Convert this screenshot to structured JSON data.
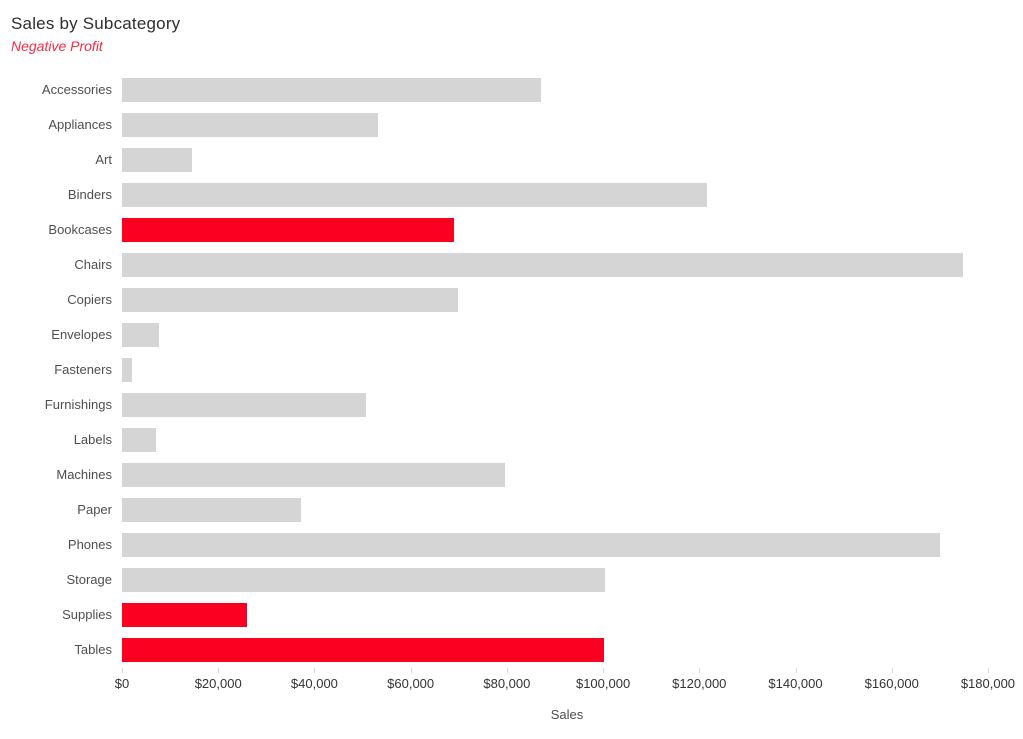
{
  "title": "Sales by Subcategory",
  "subtitle": "Negative Profit",
  "colors": {
    "bar_default": "#d5d5d5",
    "bar_negative": "#fc0021",
    "subtitle_text": "#fa2b44",
    "title_text": "#2e2e2e",
    "category_label_text": "#4e4e4e",
    "tick_label_text": "#333333",
    "tick_mark": "#d8d8d8"
  },
  "chart_data": {
    "type": "bar",
    "orientation": "horizontal",
    "title": "Sales by Subcategory",
    "subtitle": "Negative Profit",
    "xlabel": "Sales",
    "ylabel": "",
    "grid": false,
    "legend": false,
    "xlim": [
      0,
      185000
    ],
    "x_tick_values": [
      0,
      20000,
      40000,
      60000,
      80000,
      100000,
      120000,
      140000,
      160000,
      180000
    ],
    "x_tick_labels": [
      "$0",
      "$20,000",
      "$40,000",
      "$60,000",
      "$80,000",
      "$100,000",
      "$120,000",
      "$140,000",
      "$160,000",
      "$180,000"
    ],
    "categories": [
      "Accessories",
      "Appliances",
      "Art",
      "Binders",
      "Bookcases",
      "Chairs",
      "Copiers",
      "Envelopes",
      "Fasteners",
      "Furnishings",
      "Labels",
      "Machines",
      "Paper",
      "Phones",
      "Storage",
      "Supplies",
      "Tables"
    ],
    "values": [
      87000,
      53200,
      14500,
      121500,
      69000,
      174900,
      69800,
      7700,
      2000,
      50700,
      7000,
      79600,
      37200,
      170000,
      100400,
      26000,
      100200
    ],
    "negative_profit_categories": [
      "Bookcases",
      "Supplies",
      "Tables"
    ],
    "highlight_meaning": "red bars = subcategories with negative profit"
  }
}
